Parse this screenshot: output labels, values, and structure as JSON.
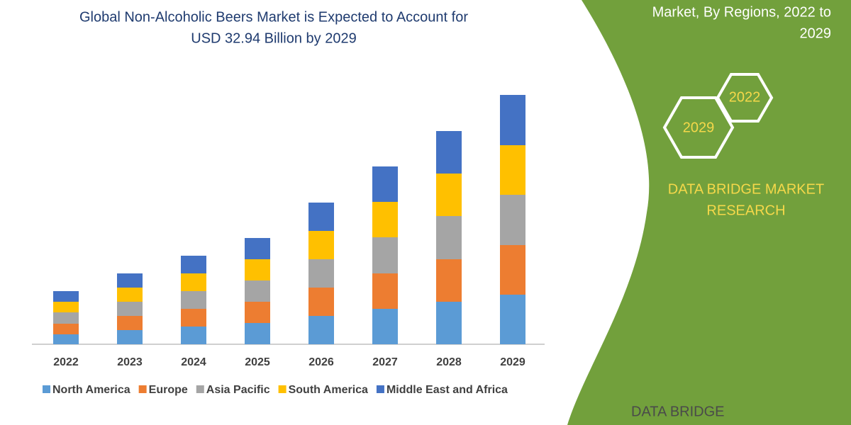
{
  "chart_data": {
    "type": "bar",
    "stacked": true,
    "title": [
      "Global Non-Alcoholic Beers Market is Expected to Account for",
      "USD 32.94 Billion by 2029"
    ],
    "categories": [
      "2022",
      "2023",
      "2024",
      "2025",
      "2026",
      "2027",
      "2028",
      "2029"
    ],
    "series": [
      {
        "name": "North America",
        "color": "#5b9bd5",
        "values": [
          14,
          20,
          25,
          30,
          40,
          50,
          60,
          70
        ]
      },
      {
        "name": "Europe",
        "color": "#ed7d31",
        "values": [
          15,
          20,
          25,
          30,
          40,
          50,
          60,
          70
        ]
      },
      {
        "name": "Asia Pacific",
        "color": "#a5a5a5",
        "values": [
          16,
          20,
          25,
          30,
          40,
          51,
          61,
          71
        ]
      },
      {
        "name": "South America",
        "color": "#ffc000",
        "values": [
          15,
          20,
          25,
          30,
          40,
          50,
          60,
          70
        ]
      },
      {
        "name": "Middle East and Africa",
        "color": "#4472c4",
        "values": [
          15,
          20,
          25,
          30,
          40,
          50,
          60,
          71
        ]
      }
    ]
  },
  "panel": {
    "heading": [
      "Market, By Regions, 2022 to",
      "2029"
    ],
    "badges": [
      "2022",
      "2029"
    ],
    "brand": [
      "DATA BRIDGE MARKET",
      "RESEARCH"
    ],
    "logo": "DATA BRIDGE"
  }
}
